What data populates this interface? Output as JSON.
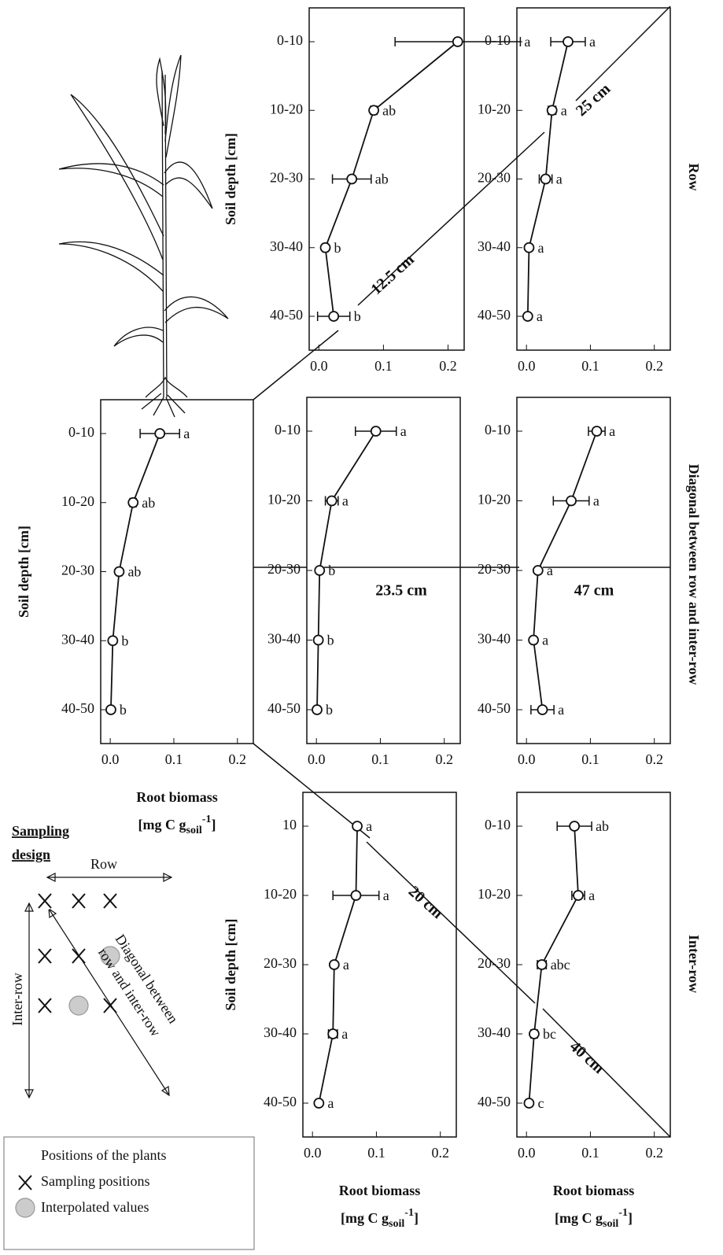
{
  "chart_data": [
    {
      "type": "line",
      "y_label": "Soil depth [cm]",
      "distance": "12.5 cm",
      "categories": [
        "0-10",
        "10-20",
        "20-30",
        "30-40",
        "40-50"
      ],
      "values": [
        0.215,
        0.085,
        0.051,
        0.01,
        0.023
      ],
      "errors": [
        0.097,
        0.005,
        0.03,
        0.004,
        0.025
      ],
      "letters": [
        "a",
        "ab",
        "ab",
        "b",
        "b"
      ],
      "xlim": [
        -0.015,
        0.225
      ],
      "xticks": [
        {
          "value": 0,
          "label": "0.0"
        },
        0.1,
        0.2
      ]
    },
    {
      "type": "line",
      "distance": "25 cm",
      "categories": [
        "0-10",
        "10-20",
        "20-30",
        "30-40",
        "40-50"
      ],
      "values": [
        0.065,
        0.04,
        0.03,
        0.004,
        0.002
      ],
      "errors": [
        0.027,
        0.006,
        0.01,
        0.002,
        0.002
      ],
      "letters": [
        "a",
        "a",
        "a",
        "a",
        "a"
      ],
      "xlim": [
        -0.015,
        0.225
      ],
      "xticks": [
        {
          "value": 0,
          "label": "0.0"
        },
        0.1,
        0.2
      ]
    },
    {
      "type": "line",
      "y_label": "Soil depth [cm]",
      "x_label": "Root biomass",
      "x_unit": {
        "open": "[mg C g",
        "sub": "soil",
        "sup": "-1",
        "close": "]"
      },
      "categories": [
        "0-10",
        "10-20",
        "20-30",
        "30-40",
        "40-50"
      ],
      "values": [
        0.078,
        0.036,
        0.014,
        0.004,
        0.001
      ],
      "errors": [
        0.031,
        0.005,
        0.004,
        0.003,
        0.002
      ],
      "letters": [
        "a",
        "ab",
        "ab",
        "b",
        "b"
      ],
      "xlim": [
        -0.015,
        0.225
      ],
      "xticks": [
        {
          "value": 0,
          "label": "0.0"
        },
        0.1,
        0.2
      ]
    },
    {
      "type": "line",
      "distance": "23.5 cm",
      "categories": [
        "0-10",
        "10-20",
        "20-30",
        "30-40",
        "40-50"
      ],
      "values": [
        0.093,
        0.024,
        0.005,
        0.003,
        0.001
      ],
      "errors": [
        0.032,
        0.01,
        0.001,
        0.003,
        0.002
      ],
      "letters": [
        "a",
        "a",
        "b",
        "b",
        "b"
      ],
      "xlim": [
        -0.015,
        0.225
      ],
      "xticks": [
        {
          "value": 0,
          "label": "0.0"
        },
        0.1,
        0.2
      ]
    },
    {
      "type": "line",
      "distance": "47 cm",
      "categories": [
        "0-10",
        "10-20",
        "20-30",
        "30-40",
        "40-50"
      ],
      "values": [
        0.11,
        0.07,
        0.018,
        0.011,
        0.025
      ],
      "errors": [
        0.013,
        0.028,
        0.003,
        0.004,
        0.018
      ],
      "letters": [
        "a",
        "a",
        "a",
        "a",
        "a"
      ],
      "xlim": [
        -0.015,
        0.225
      ],
      "xticks": [
        {
          "value": 0,
          "label": "0.0"
        },
        0.1,
        0.2
      ]
    },
    {
      "type": "line",
      "y_label": "Soil depth [cm]",
      "distance": "20 cm",
      "x_label": "Root biomass",
      "x_unit": {
        "open": "[mg C g",
        "sub": "soil",
        "sup": "-1",
        "close": "]"
      },
      "categories": [
        "10",
        "10-20",
        "20-30",
        "30-40",
        "40-50"
      ],
      "values": [
        0.07,
        0.068,
        0.034,
        0.032,
        0.01
      ],
      "errors": [
        0.003,
        0.036,
        0.003,
        0.007,
        0.002
      ],
      "letters": [
        "a",
        "a",
        "a",
        "a",
        "a"
      ],
      "xlim": [
        -0.015,
        0.225
      ],
      "xticks": [
        {
          "value": 0,
          "label": "0.0"
        },
        0.1,
        0.2
      ]
    },
    {
      "type": "line",
      "distance": "40 cm",
      "x_label": "Root biomass",
      "x_unit": {
        "open": "[mg C g",
        "sub": "soil",
        "sup": "-1",
        "close": "]"
      },
      "categories": [
        "0-10",
        "10-20",
        "20-30",
        "30-40",
        "40-50"
      ],
      "values": [
        0.075,
        0.081,
        0.024,
        0.012,
        0.004
      ],
      "errors": [
        0.027,
        0.01,
        0.007,
        0.005,
        0.002
      ],
      "letters": [
        "ab",
        "a",
        "abc",
        "bc",
        "c"
      ],
      "xlim": [
        -0.015,
        0.225
      ],
      "xticks": [
        {
          "value": 0,
          "label": "0.0"
        },
        0.1,
        0.2
      ]
    }
  ],
  "panel_groups": [
    "Row",
    "Diagonal between row and inter-row",
    "Inter-row"
  ],
  "sampling_design": {
    "title": [
      "Sampling",
      "design"
    ],
    "row": "Row",
    "inter_row": "Inter-row",
    "diagonal": [
      "Diagonal between",
      "row and inter-row"
    ],
    "legend": [
      "Positions of the plants",
      "Sampling positions",
      "Interpolated values"
    ]
  }
}
